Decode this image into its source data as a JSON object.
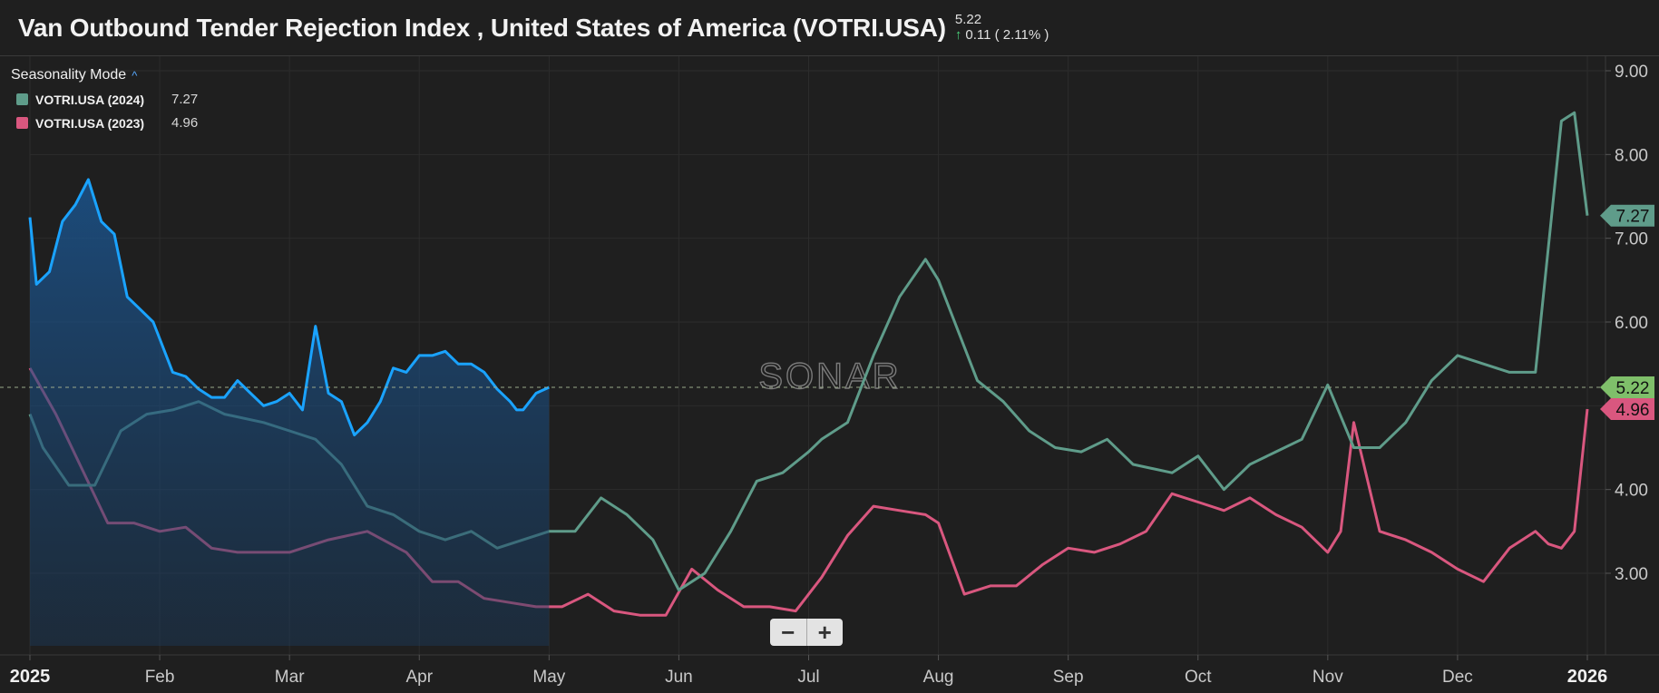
{
  "header": {
    "title": "Van Outbound Tender Rejection Index , United States of America (VOTRI.USA)",
    "last_value": "5.22",
    "change_text": "0.11 ( 2.11% )"
  },
  "legend": {
    "mode_label": "Seasonality Mode",
    "items": [
      {
        "label": "VOTRI.USA (2024)",
        "value": "7.27",
        "color": "#5f9c8a"
      },
      {
        "label": "VOTRI.USA (2023)",
        "value": "4.96",
        "color": "#d9577f"
      }
    ]
  },
  "watermark": "SONAR",
  "colors": {
    "current": "#1aa3ff",
    "y2024": "#5f9c8a",
    "y2023": "#d9577f",
    "last_tag": "#7fbf6a"
  },
  "chart_data": {
    "type": "line",
    "x_unit": "month (2025 = 0, 2026 = 12)",
    "ylim": [
      2.0,
      9.2
    ],
    "y_ticks": [
      3.0,
      4.0,
      5.0,
      6.0,
      7.0,
      8.0,
      9.0
    ],
    "y_tick_labels": [
      "3.00",
      "4.00",
      "5.00",
      "6.00",
      "7.00",
      "8.00",
      "9.00"
    ],
    "x_tick_labels": [
      "2025",
      "Feb",
      "Mar",
      "Apr",
      "May",
      "Jun",
      "Jul",
      "Aug",
      "Sep",
      "Oct",
      "Nov",
      "Dec",
      "2026"
    ],
    "reference_line": 5.22,
    "value_tags": [
      {
        "label": "7.27",
        "value": 7.27,
        "color": "#5f9c8a"
      },
      {
        "label": "5.22",
        "value": 5.22,
        "color": "#7fbf6a"
      },
      {
        "label": "4.96",
        "value": 4.96,
        "color": "#d9577f"
      }
    ],
    "series": [
      {
        "name": "VOTRI.USA (2024)",
        "color": "#5f9c8a",
        "x": [
          0,
          0.1,
          0.3,
          0.5,
          0.7,
          0.9,
          1.1,
          1.3,
          1.5,
          1.8,
          2.0,
          2.2,
          2.4,
          2.6,
          2.8,
          3.0,
          3.2,
          3.4,
          3.6,
          3.8,
          4.0,
          4.2,
          4.4,
          4.6,
          4.8,
          5.0,
          5.2,
          5.4,
          5.6,
          5.8,
          6.0,
          6.1,
          6.2,
          6.3,
          6.5,
          6.7,
          6.9,
          7.0,
          7.3,
          7.5,
          7.7,
          7.9,
          8.1,
          8.3,
          8.5,
          8.8,
          9.0,
          9.2,
          9.4,
          9.6,
          9.8,
          10.0,
          10.2,
          10.4,
          10.6,
          10.8,
          11.0,
          11.2,
          11.4,
          11.6,
          11.8,
          11.9,
          12.0
        ],
        "values": [
          4.9,
          4.5,
          4.05,
          4.05,
          4.7,
          4.9,
          4.95,
          5.05,
          4.9,
          4.8,
          4.7,
          4.6,
          4.3,
          3.8,
          3.7,
          3.5,
          3.4,
          3.5,
          3.3,
          3.4,
          3.5,
          3.5,
          3.9,
          3.7,
          3.4,
          2.8,
          3.0,
          3.5,
          4.1,
          4.2,
          4.45,
          4.6,
          4.7,
          4.8,
          5.6,
          6.3,
          6.75,
          6.5,
          5.3,
          5.05,
          4.7,
          4.5,
          4.45,
          4.6,
          4.3,
          4.2,
          4.4,
          4.0,
          4.3,
          4.45,
          4.6,
          5.25,
          4.5,
          4.5,
          4.8,
          5.3,
          5.6,
          5.5,
          5.4,
          5.4,
          8.4,
          8.5,
          7.27
        ]
      },
      {
        "name": "VOTRI.USA (2023)",
        "color": "#d9577f",
        "x": [
          0,
          0.2,
          0.4,
          0.6,
          0.8,
          1.0,
          1.2,
          1.4,
          1.6,
          1.8,
          2.0,
          2.3,
          2.6,
          2.9,
          3.1,
          3.3,
          3.5,
          3.7,
          3.9,
          4.1,
          4.3,
          4.5,
          4.7,
          4.9,
          5.1,
          5.3,
          5.5,
          5.7,
          5.9,
          6.1,
          6.3,
          6.5,
          6.7,
          6.9,
          7.0,
          7.2,
          7.4,
          7.6,
          7.8,
          8.0,
          8.2,
          8.4,
          8.6,
          8.8,
          9.0,
          9.2,
          9.4,
          9.6,
          9.8,
          10.0,
          10.1,
          10.2,
          10.4,
          10.6,
          10.8,
          11.0,
          11.2,
          11.4,
          11.6,
          11.7,
          11.8,
          11.9,
          12.0
        ],
        "values": [
          5.45,
          4.9,
          4.25,
          3.6,
          3.6,
          3.5,
          3.55,
          3.3,
          3.25,
          3.25,
          3.25,
          3.4,
          3.5,
          3.25,
          2.9,
          2.9,
          2.7,
          2.65,
          2.6,
          2.6,
          2.75,
          2.55,
          2.5,
          2.5,
          3.05,
          2.8,
          2.6,
          2.6,
          2.55,
          2.95,
          3.45,
          3.8,
          3.75,
          3.7,
          3.6,
          2.75,
          2.85,
          2.85,
          3.1,
          3.3,
          3.25,
          3.35,
          3.5,
          3.95,
          3.85,
          3.75,
          3.9,
          3.7,
          3.55,
          3.25,
          3.5,
          4.8,
          3.5,
          3.4,
          3.25,
          3.05,
          2.9,
          3.3,
          3.5,
          3.35,
          3.3,
          3.5,
          4.96
        ]
      },
      {
        "name": "",
        "color": "#1aa3ff",
        "fill": true,
        "x": [
          0,
          0.05,
          0.15,
          0.25,
          0.35,
          0.45,
          0.55,
          0.65,
          0.75,
          0.85,
          0.95,
          1.0,
          1.1,
          1.2,
          1.3,
          1.4,
          1.5,
          1.6,
          1.7,
          1.8,
          1.9,
          2.0,
          2.1,
          2.2,
          2.3,
          2.4,
          2.5,
          2.6,
          2.7,
          2.8,
          2.9,
          3.0,
          3.1,
          3.2,
          3.3,
          3.4,
          3.5,
          3.6,
          3.7,
          3.75,
          3.8,
          3.9,
          4.0
        ],
        "values": [
          7.25,
          6.45,
          6.6,
          7.2,
          7.4,
          7.7,
          7.2,
          7.05,
          6.3,
          6.15,
          6.0,
          5.8,
          5.4,
          5.35,
          5.2,
          5.1,
          5.1,
          5.3,
          5.15,
          5.0,
          5.05,
          5.15,
          4.95,
          5.95,
          5.15,
          5.05,
          4.65,
          4.8,
          5.05,
          5.45,
          5.4,
          5.6,
          5.6,
          5.65,
          5.5,
          5.5,
          5.4,
          5.2,
          5.05,
          4.95,
          4.95,
          5.15,
          5.22
        ]
      }
    ]
  }
}
